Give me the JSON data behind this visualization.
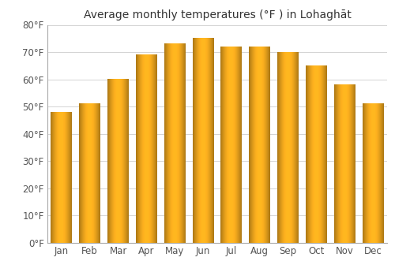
{
  "title": "Average monthly temperatures (°F ) in Lohaghāt",
  "months": [
    "Jan",
    "Feb",
    "Mar",
    "Apr",
    "May",
    "Jun",
    "Jul",
    "Aug",
    "Sep",
    "Oct",
    "Nov",
    "Dec"
  ],
  "values": [
    48,
    51,
    60,
    69,
    73,
    75,
    72,
    72,
    70,
    65,
    58,
    51
  ],
  "bar_color_left": "#E8900A",
  "bar_color_mid": "#FFCC55",
  "bar_color_right": "#F0A020",
  "background_color": "#ffffff",
  "ylim": [
    0,
    80
  ],
  "yticks": [
    0,
    10,
    20,
    30,
    40,
    50,
    60,
    70,
    80
  ],
  "ytick_labels": [
    "0°F",
    "10°F",
    "20°F",
    "30°F",
    "40°F",
    "50°F",
    "60°F",
    "70°F",
    "80°F"
  ],
  "title_fontsize": 10,
  "tick_fontsize": 8.5,
  "grid_color": "#cccccc",
  "bar_width": 0.75
}
